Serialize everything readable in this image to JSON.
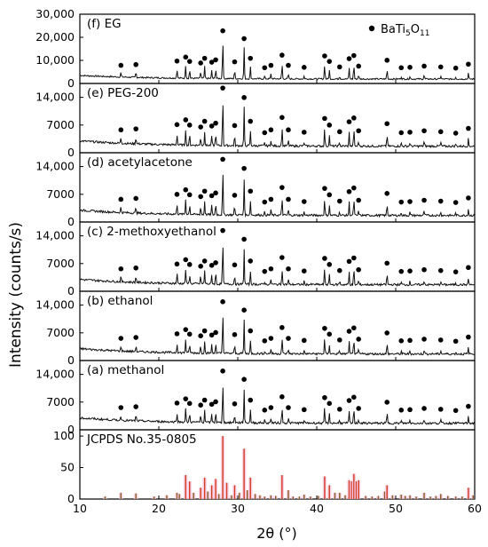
{
  "chart_data": {
    "type": "line",
    "xlabel": "2θ (°)",
    "ylabel": "Intensity (counts/s)",
    "xlim": [
      10,
      60
    ],
    "xticks": [
      10,
      20,
      30,
      40,
      50,
      60
    ],
    "legend": {
      "marker": "filled-circle",
      "label": "BaTi5O11",
      "placement": "top-right"
    },
    "peak_positions_2theta": [
      15.2,
      17.1,
      22.3,
      23.4,
      23.9,
      25.3,
      25.8,
      26.7,
      27.2,
      28.1,
      29.6,
      30.8,
      31.6,
      33.4,
      34.2,
      35.6,
      36.4,
      38.4,
      41.0,
      41.6,
      42.9,
      44.1,
      44.7,
      45.3,
      48.9,
      50.7,
      51.8,
      53.6,
      55.7,
      57.6,
      59.2
    ],
    "peak_relative_heights": [
      0.12,
      0.14,
      0.23,
      0.33,
      0.22,
      0.18,
      0.3,
      0.2,
      0.26,
      1.0,
      0.21,
      0.8,
      0.3,
      0.06,
      0.12,
      0.38,
      0.12,
      0.07,
      0.36,
      0.22,
      0.08,
      0.29,
      0.37,
      0.1,
      0.25,
      0.06,
      0.07,
      0.1,
      0.08,
      0.05,
      0.15
    ],
    "panels": [
      {
        "label": "(f) EG",
        "ylim": [
          0,
          30000
        ],
        "yticks": [
          "0",
          "10,000",
          "20,000",
          "30,000"
        ],
        "baseline": 3500,
        "peak_max": 20500
      },
      {
        "label": "(e) PEG-200",
        "ylim": [
          0,
          17500
        ],
        "yticks": [
          "0",
          "7000",
          "14,000"
        ],
        "baseline": 3000,
        "peak_max": 15000
      },
      {
        "label": "(d) acetylacetone",
        "ylim": [
          0,
          17500
        ],
        "yticks": [
          "0",
          "7000",
          "14,000"
        ],
        "baseline": 3000,
        "peak_max": 14500
      },
      {
        "label": "(c) 2-methoxyethanol",
        "ylim": [
          0,
          17500
        ],
        "yticks": [
          "0",
          "7000",
          "14,000"
        ],
        "baseline": 3000,
        "peak_max": 14000
      },
      {
        "label": "(b) ethanol",
        "ylim": [
          0,
          17500
        ],
        "yticks": [
          "0",
          "7000",
          "14,000"
        ],
        "baseline": 3000,
        "peak_max": 13500
      },
      {
        "label": "(a) methanol",
        "ylim": [
          0,
          17500
        ],
        "yticks": [
          "0",
          "7000",
          "14,000"
        ],
        "baseline": 3000,
        "peak_max": 13500
      }
    ],
    "reference": {
      "label": "JCPDS No.35-0805",
      "ylim": [
        0,
        110
      ],
      "yticks": [
        "0",
        "50",
        "100"
      ],
      "lines_2theta": [
        13.2,
        15.2,
        17.1,
        19.4,
        21.0,
        22.3,
        22.6,
        23.4,
        23.9,
        24.4,
        25.3,
        25.8,
        26.2,
        26.7,
        27.2,
        27.6,
        28.1,
        28.6,
        29.2,
        29.6,
        30.2,
        30.8,
        31.2,
        31.6,
        32.2,
        32.8,
        33.4,
        34.2,
        34.8,
        35.6,
        36.4,
        37.0,
        37.8,
        38.4,
        39.2,
        40.2,
        41.0,
        41.6,
        42.3,
        42.9,
        43.6,
        44.1,
        44.4,
        44.7,
        45.0,
        45.3,
        46.2,
        47.0,
        47.8,
        48.6,
        48.9,
        49.6,
        50.7,
        51.2,
        51.8,
        52.6,
        53.6,
        54.4,
        55.1,
        55.7,
        56.6,
        57.6,
        58.4,
        59.2,
        59.8
      ],
      "intensities": [
        4,
        10,
        9,
        4,
        6,
        10,
        8,
        38,
        28,
        10,
        18,
        34,
        12,
        22,
        32,
        8,
        100,
        26,
        6,
        22,
        10,
        80,
        14,
        34,
        8,
        6,
        4,
        6,
        5,
        38,
        14,
        4,
        4,
        7,
        4,
        5,
        36,
        22,
        10,
        10,
        6,
        30,
        28,
        40,
        28,
        30,
        5,
        4,
        5,
        12,
        22,
        6,
        7,
        5,
        6,
        4,
        10,
        4,
        5,
        8,
        5,
        4,
        4,
        18,
        6
      ]
    }
  }
}
